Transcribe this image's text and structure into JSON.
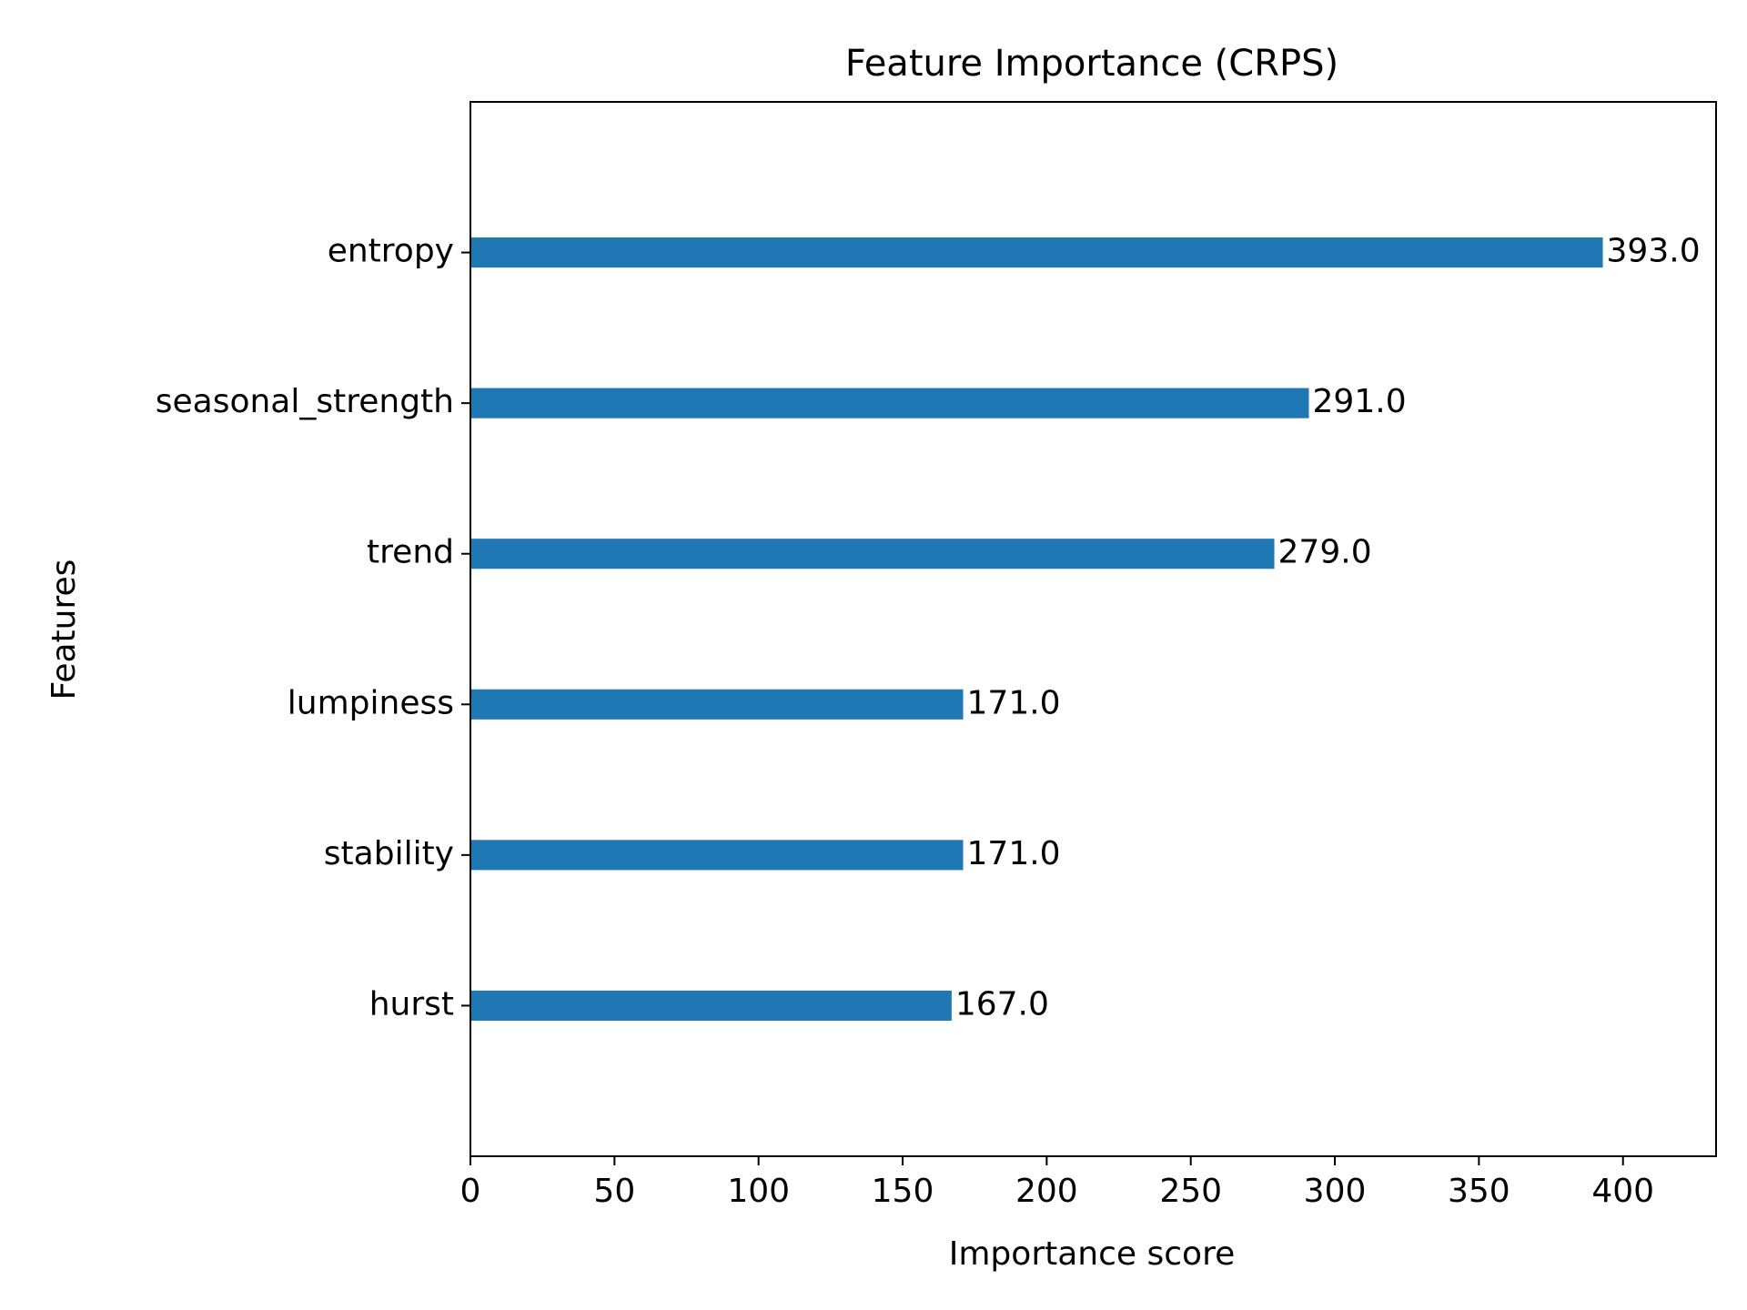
{
  "chart_data": {
    "type": "bar",
    "orientation": "horizontal",
    "title": "Feature Importance (CRPS)",
    "xlabel": "Importance score",
    "ylabel": "Features",
    "categories": [
      "entropy",
      "seasonal_strength",
      "trend",
      "lumpiness",
      "stability",
      "hurst"
    ],
    "values": [
      393.0,
      291.0,
      279.0,
      171.0,
      171.0,
      167.0
    ],
    "data_labels": [
      "393.0",
      "291.0",
      "279.0",
      "171.0",
      "171.0",
      "167.0"
    ],
    "xlim": [
      0,
      432.3
    ],
    "xticks": [
      0,
      50,
      100,
      150,
      200,
      250,
      300,
      350,
      400
    ],
    "xtick_labels": [
      "0",
      "50",
      "100",
      "150",
      "200",
      "250",
      "300",
      "350",
      "400"
    ],
    "grid": false,
    "bar_color": "#1f77b4"
  }
}
